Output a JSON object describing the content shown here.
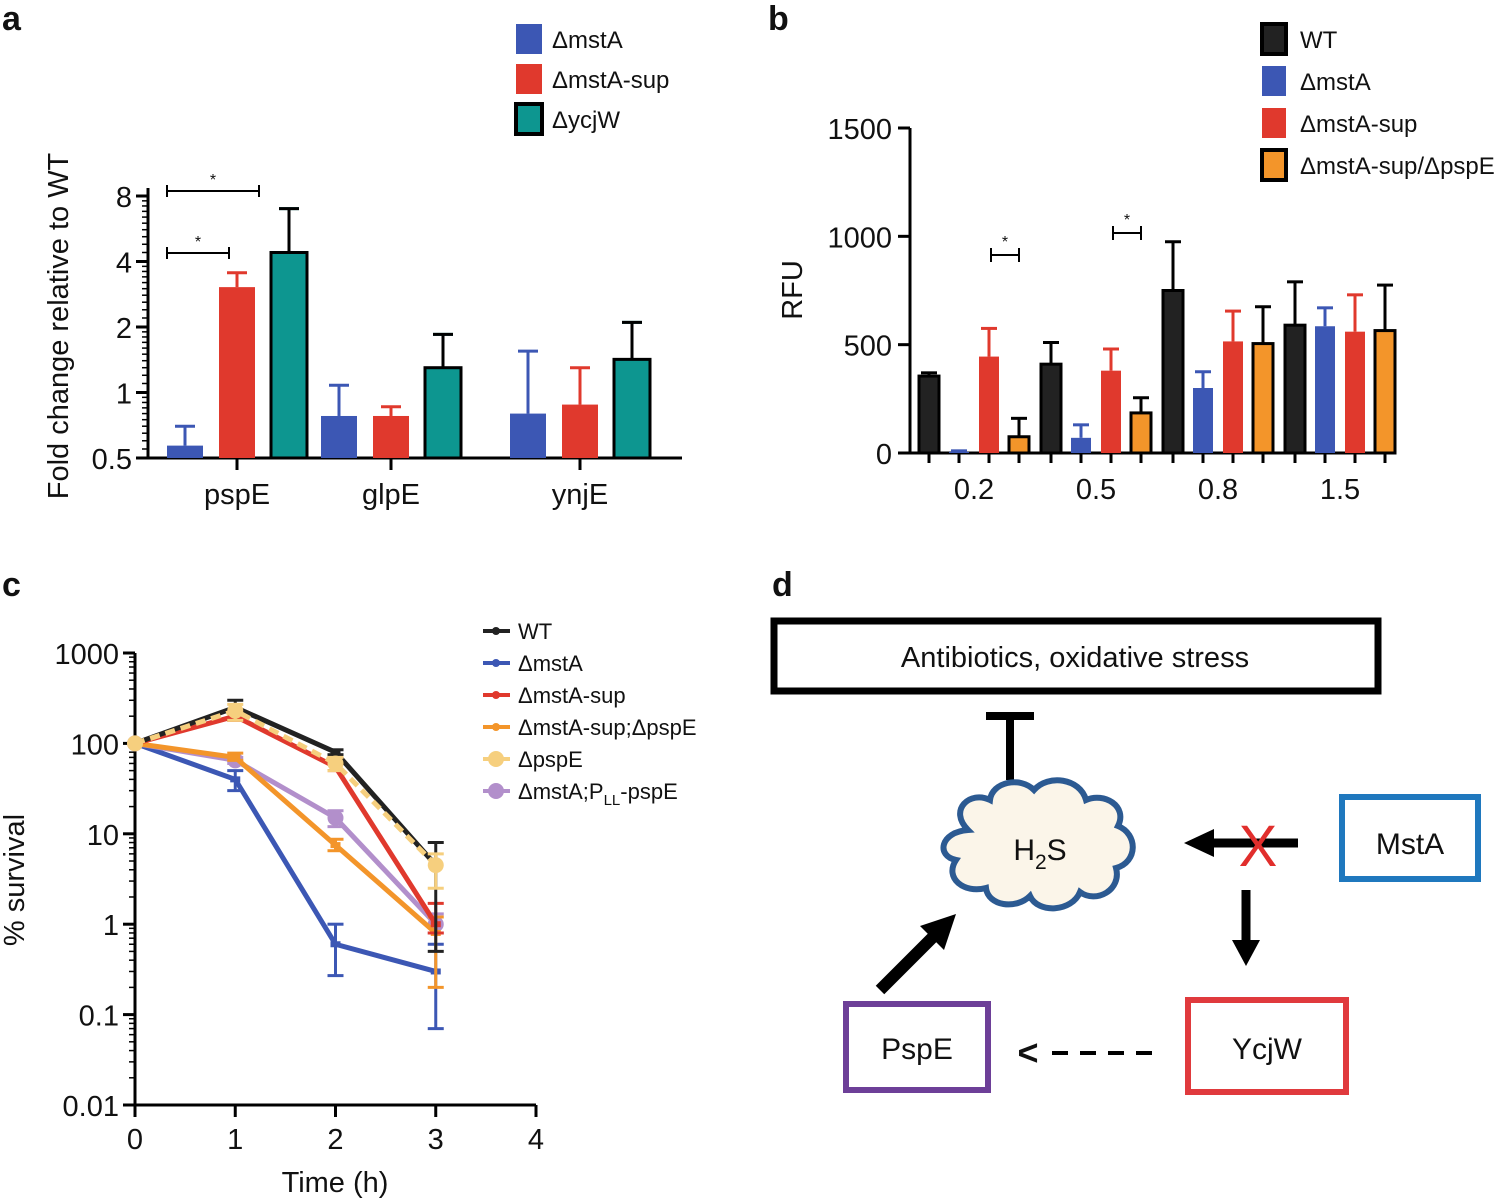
{
  "panels": {
    "a": {
      "letter": "a"
    },
    "b": {
      "letter": "b"
    },
    "c": {
      "letter": "c"
    },
    "d": {
      "letter": "d"
    }
  },
  "colors": {
    "WT": "#222222",
    "mstA": "#3c57b4",
    "mstA_sup": "#e0392d",
    "ycjW": "#0d9690",
    "mstA_sup_pspE": "#f3952a",
    "pspE": "#f6cf7e",
    "PLL": "#b28fcb",
    "diagram_mstA": "#1f78be",
    "diagram_ycjW": "#e03a3d",
    "diagram_pspE": "#6d3f98",
    "cloud_fill": "#fbf5e9",
    "cloud_stroke": "#2c5a92",
    "red_x": "#e12e2c"
  },
  "chart_data": [
    {
      "panel": "a",
      "type": "bar",
      "scale": "log2",
      "ylabel": "Fold change relative to WT",
      "xlabel": "",
      "ylim": [
        0.5,
        8
      ],
      "yticks": [
        "0.5",
        "1",
        "2",
        "4",
        "8"
      ],
      "categories": [
        "pspE",
        "glpE",
        "ynjE"
      ],
      "series": [
        {
          "name": "ΔmstA",
          "values": [
            0.57,
            0.78,
            0.8
          ],
          "errors_upper": [
            0.7,
            1.08,
            1.55
          ]
        },
        {
          "name": "ΔmstA-sup",
          "values": [
            3.05,
            0.78,
            0.88
          ],
          "errors_upper": [
            3.55,
            0.86,
            1.3
          ]
        },
        {
          "name": "ΔycjW",
          "values": [
            4.4,
            1.3,
            1.42
          ],
          "errors_upper": [
            7.0,
            1.85,
            2.1
          ]
        }
      ],
      "significance": [
        {
          "label": "*",
          "from": "ΔmstA",
          "to": "ΔmstA-sup",
          "category": "pspE"
        },
        {
          "label": "*",
          "from": "ΔmstA",
          "to": "ΔycjW",
          "category": "pspE"
        }
      ]
    },
    {
      "panel": "b",
      "type": "bar",
      "ylabel": "RFU",
      "xlabel": "",
      "ylim": [
        0,
        1500
      ],
      "yticks": [
        "0",
        "500",
        "1000",
        "1500"
      ],
      "categories": [
        "0.2",
        "0.5",
        "0.8",
        "1.5"
      ],
      "series": [
        {
          "name": "WT",
          "values": [
            355,
            410,
            750,
            590
          ],
          "errors_upper": [
            370,
            510,
            975,
            790
          ]
        },
        {
          "name": "ΔmstA",
          "values": [
            5,
            70,
            300,
            585
          ],
          "errors_upper": [
            10,
            130,
            375,
            670
          ]
        },
        {
          "name": "ΔmstA-sup",
          "values": [
            445,
            380,
            515,
            560
          ],
          "errors_upper": [
            575,
            480,
            655,
            730
          ]
        },
        {
          "name": "ΔmstA-sup/ΔpspE",
          "values": [
            75,
            185,
            505,
            565
          ],
          "errors_upper": [
            160,
            255,
            675,
            775
          ]
        }
      ],
      "significance": [
        {
          "label": "*",
          "from": "ΔmstA-sup",
          "to": "ΔmstA-sup/ΔpspE",
          "category": "0.2"
        },
        {
          "label": "*",
          "from": "ΔmstA-sup",
          "to": "ΔmstA-sup/ΔpspE",
          "category": "0.5"
        }
      ]
    },
    {
      "panel": "c",
      "type": "line",
      "scale": "log10",
      "ylabel": "% survival",
      "xlabel": "Time (h)",
      "xlim": [
        0,
        4
      ],
      "ylim": [
        0.01,
        1000
      ],
      "xticks": [
        "0",
        "1",
        "2",
        "3",
        "4"
      ],
      "yticks": [
        "0.01",
        "0.1",
        "1",
        "10",
        "100",
        "1000"
      ],
      "x": [
        0,
        1,
        2,
        3
      ],
      "series": [
        {
          "name": "WT",
          "values": [
            100,
            250,
            80,
            4.5
          ],
          "err_low": [
            100,
            220,
            75,
            0.5
          ],
          "err_high": [
            100,
            300,
            85,
            8
          ]
        },
        {
          "name": "ΔmstA",
          "values": [
            100,
            40,
            0.6,
            0.3
          ],
          "err_low": [
            100,
            30,
            0.27,
            0.07
          ],
          "err_high": [
            100,
            50,
            1.0,
            0.6
          ]
        },
        {
          "name": "ΔmstA-sup",
          "values": [
            100,
            200,
            55,
            1.0
          ],
          "err_low": [
            100,
            180,
            50,
            0.8
          ],
          "err_high": [
            100,
            220,
            60,
            1.7
          ]
        },
        {
          "name": "ΔmstA-sup;ΔpspE",
          "values": [
            100,
            70,
            7.5,
            0.8
          ],
          "err_low": [
            100,
            65,
            6.5,
            0.2
          ],
          "err_high": [
            100,
            78,
            8.7,
            1.2
          ]
        },
        {
          "name": "ΔpspE",
          "values": [
            100,
            230,
            60,
            4.5
          ],
          "err_low": [
            100,
            180,
            50,
            2.5
          ],
          "err_high": [
            100,
            270,
            70,
            6
          ]
        },
        {
          "name": "ΔmstA;PLL-pspE",
          "label_main": "ΔmstA;P",
          "label_sub": "LL",
          "label_tail": "-pspE",
          "values": [
            100,
            65,
            15,
            1.0
          ],
          "err_low": [
            100,
            60,
            12,
            0.8
          ],
          "err_high": [
            100,
            70,
            18,
            1.3
          ]
        }
      ]
    }
  ],
  "diagram": {
    "stress_box": "Antibiotics, oxidative stress",
    "h2s_main": "H",
    "h2s_sub": "2",
    "h2s_tail": "S",
    "mstA": "MstA",
    "ycjW": "YcjW",
    "pspE": "PspE",
    "x_mark": "X",
    "dashed_head": "<"
  }
}
